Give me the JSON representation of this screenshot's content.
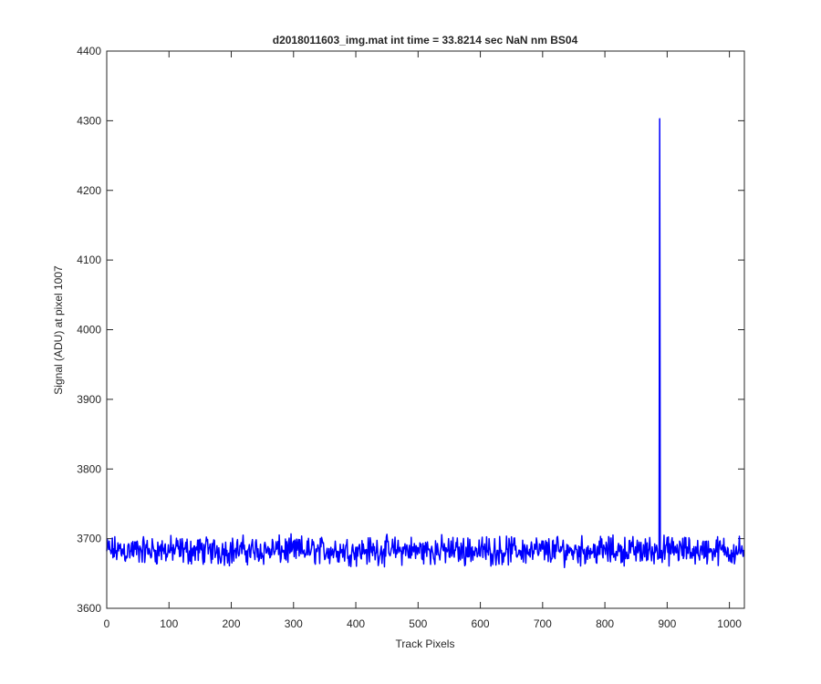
{
  "chart_data": {
    "type": "line",
    "title": "d2018011603_img.mat int time = 33.8214 sec  NaN nm BS04",
    "xlabel": "Track Pixels",
    "ylabel": "Signal (ADU) at pixel 1007",
    "xlim": [
      0,
      1024
    ],
    "ylim": [
      3600,
      4400
    ],
    "xticks": [
      0,
      100,
      200,
      300,
      400,
      500,
      600,
      700,
      800,
      900,
      1000
    ],
    "yticks": [
      3600,
      3700,
      3800,
      3900,
      4000,
      4100,
      4200,
      4300,
      4400
    ],
    "grid": false,
    "legend": "none",
    "series": [
      {
        "color": "#0000ff",
        "n_points": 1024,
        "baseline_mean": 3683,
        "noise_peak_to_peak": 50,
        "features": [
          {
            "x": 888,
            "y": 4303,
            "kind": "spike"
          }
        ],
        "min_observed": 3655,
        "max_noise_observed": 3708
      }
    ]
  }
}
